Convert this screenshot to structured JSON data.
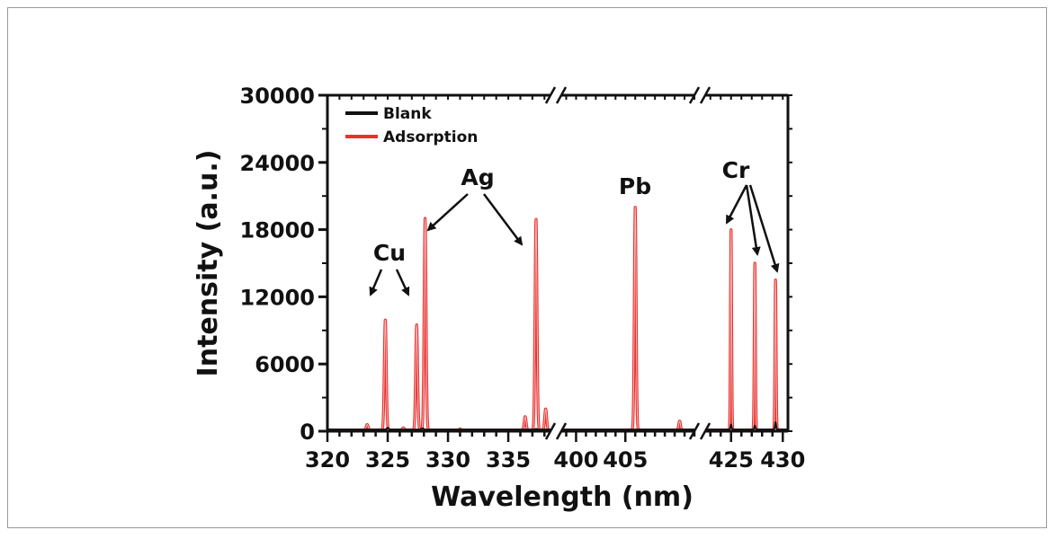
{
  "chart_data": {
    "type": "line",
    "xlabel": "Wavelength (nm)",
    "ylabel": "Intensity (a.u.)",
    "ylim": [
      0,
      30000
    ],
    "y_ticks": [
      "0",
      "6000",
      "12000",
      "18000",
      "24000",
      "30000"
    ],
    "x_axis_breaks": true,
    "x_segments": [
      {
        "range": [
          320,
          338.5
        ],
        "ticks": [
          320,
          325,
          330,
          335
        ],
        "tick_labels": [
          "320",
          "325",
          "330",
          "335"
        ]
      },
      {
        "range": [
          398.5,
          412
        ],
        "ticks": [
          400,
          405
        ],
        "tick_labels": [
          "400",
          "405"
        ]
      },
      {
        "range": [
          422.5,
          430.5
        ],
        "ticks": [
          425,
          430
        ],
        "tick_labels": [
          "425",
          "430"
        ]
      }
    ],
    "series": [
      {
        "name": "Blank",
        "color": "#111111",
        "peaks": [
          {
            "x": 325,
            "y": 300
          },
          {
            "x": 327.9,
            "y": 250
          },
          {
            "x": 337.3,
            "y": 200
          },
          {
            "x": 406,
            "y": 150
          },
          {
            "x": 425,
            "y": 600
          },
          {
            "x": 427.3,
            "y": 500
          },
          {
            "x": 429.3,
            "y": 800
          }
        ],
        "baseline": 150
      },
      {
        "name": "Adsorption",
        "color": "#e8312f",
        "peaks": [
          {
            "x": 323.3,
            "y": 600
          },
          {
            "x": 324.8,
            "y": 10000
          },
          {
            "x": 326.3,
            "y": 300
          },
          {
            "x": 327.4,
            "y": 9500
          },
          {
            "x": 328.1,
            "y": 19000
          },
          {
            "x": 331.0,
            "y": 200
          },
          {
            "x": 336.4,
            "y": 1300
          },
          {
            "x": 337.3,
            "y": 19000
          },
          {
            "x": 338.1,
            "y": 2000
          },
          {
            "x": 406.0,
            "y": 20000
          },
          {
            "x": 410.5,
            "y": 900
          },
          {
            "x": 425.0,
            "y": 18000
          },
          {
            "x": 427.3,
            "y": 15000
          },
          {
            "x": 429.3,
            "y": 13500
          }
        ],
        "baseline": 100
      }
    ],
    "legend": {
      "position": "top-left",
      "entries": [
        "Blank",
        "Adsorption"
      ]
    },
    "annotations": [
      {
        "label": "Cu",
        "targets": [
          324.8,
          327.4
        ]
      },
      {
        "label": "Ag",
        "targets": [
          328.1,
          337.3
        ]
      },
      {
        "label": "Pb",
        "targets": []
      },
      {
        "label": "Cr",
        "targets": [
          425.0,
          427.3,
          429.3
        ]
      }
    ]
  }
}
